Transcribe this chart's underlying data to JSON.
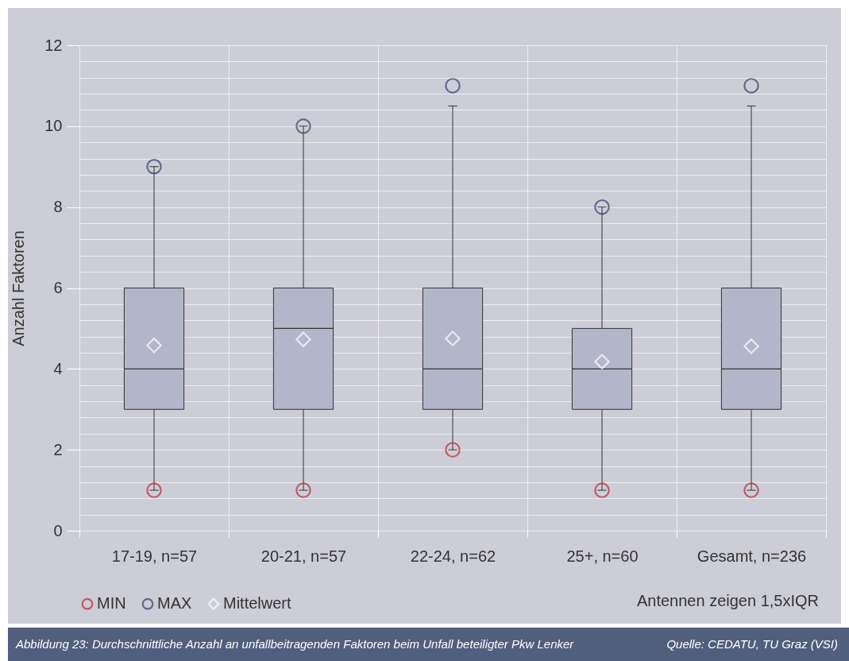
{
  "chart_data": {
    "type": "box",
    "ylabel": "Anzahl Faktoren",
    "categories": [
      "17-19, n=57",
      "20-21, n=57",
      "22-24, n=62",
      "25+, n=60",
      "Gesamt, n=236"
    ],
    "boxes": [
      {
        "low": 1,
        "q1": 3,
        "median": 4,
        "q3": 6,
        "high": 9
      },
      {
        "low": 1,
        "q1": 3,
        "median": 5,
        "q3": 6,
        "high": 10
      },
      {
        "low": 2,
        "q1": 3,
        "median": 4,
        "q3": 6,
        "high": 10.5
      },
      {
        "low": 1,
        "q1": 3,
        "median": 4,
        "q3": 5,
        "high": 8
      },
      {
        "low": 1,
        "q1": 3,
        "median": 4,
        "q3": 6,
        "high": 10.5
      }
    ],
    "series": [
      {
        "name": "MIN",
        "type": "scatter",
        "marker": "circle",
        "color": "#c0272d",
        "x": [
          "17-19, n=57",
          "20-21, n=57",
          "22-24, n=62",
          "25+, n=60",
          "Gesamt, n=236"
        ],
        "values": [
          1,
          1,
          2,
          1,
          1
        ]
      },
      {
        "name": "MAX",
        "type": "scatter",
        "marker": "circle",
        "color": "#2e4470",
        "x": [
          "17-19, n=57",
          "20-21, n=57",
          "22-24, n=62",
          "25+, n=60",
          "Gesamt, n=236"
        ],
        "values": [
          9,
          10,
          11,
          8,
          11
        ]
      },
      {
        "name": "Mittelwert",
        "type": "scatter",
        "marker": "diamond",
        "color": "#ffffff",
        "x": [
          "17-19, n=57",
          "20-21, n=57",
          "22-24, n=62",
          "25+, n=60",
          "Gesamt, n=236"
        ],
        "values": [
          4.58,
          4.73,
          4.75,
          4.18,
          4.56
        ]
      }
    ],
    "ylim": [
      0,
      12
    ],
    "yticks": [
      0,
      {
        "value": 0.4,
        "label": null
      },
      {
        "value": 0.8,
        "label": null
      },
      {
        "value": 1.2,
        "label": null
      },
      {
        "value": 1.6,
        "label": null
      },
      2,
      {
        "value": 2.4,
        "label": null
      },
      {
        "value": 2.8,
        "label": null
      },
      {
        "value": 3.2,
        "label": null
      },
      {
        "value": 3.6,
        "label": null
      },
      4,
      {
        "value": 4.4,
        "label": null
      },
      {
        "value": 4.8,
        "label": null
      },
      {
        "value": 5.2,
        "label": null
      },
      {
        "value": 5.6,
        "label": null
      },
      6,
      {
        "value": 6.4,
        "label": null
      },
      {
        "value": 6.8,
        "label": null
      },
      {
        "value": 7.2,
        "label": null
      },
      {
        "value": 7.6,
        "label": null
      },
      8,
      {
        "value": 8.4,
        "label": null
      },
      {
        "value": 8.8,
        "label": null
      },
      {
        "value": 9.2,
        "label": null
      },
      {
        "value": 9.6,
        "label": null
      },
      10,
      {
        "value": 10.4,
        "label": null
      },
      {
        "value": 10.8,
        "label": null
      },
      {
        "value": 11.2,
        "label": null
      },
      {
        "value": 11.6,
        "label": null
      },
      12
    ],
    "grid": true,
    "legend": "bottom",
    "annotations": [
      "Antennen zeigen 1,5xIQR",
      "Abbildung 23: Durchschnittliche Anzahl an unfallbeitragenden Faktoren beim Unfall beteiligter Pkw Lenker",
      "Quelle: CEDATU, TU Graz (VSI)"
    ]
  }
}
